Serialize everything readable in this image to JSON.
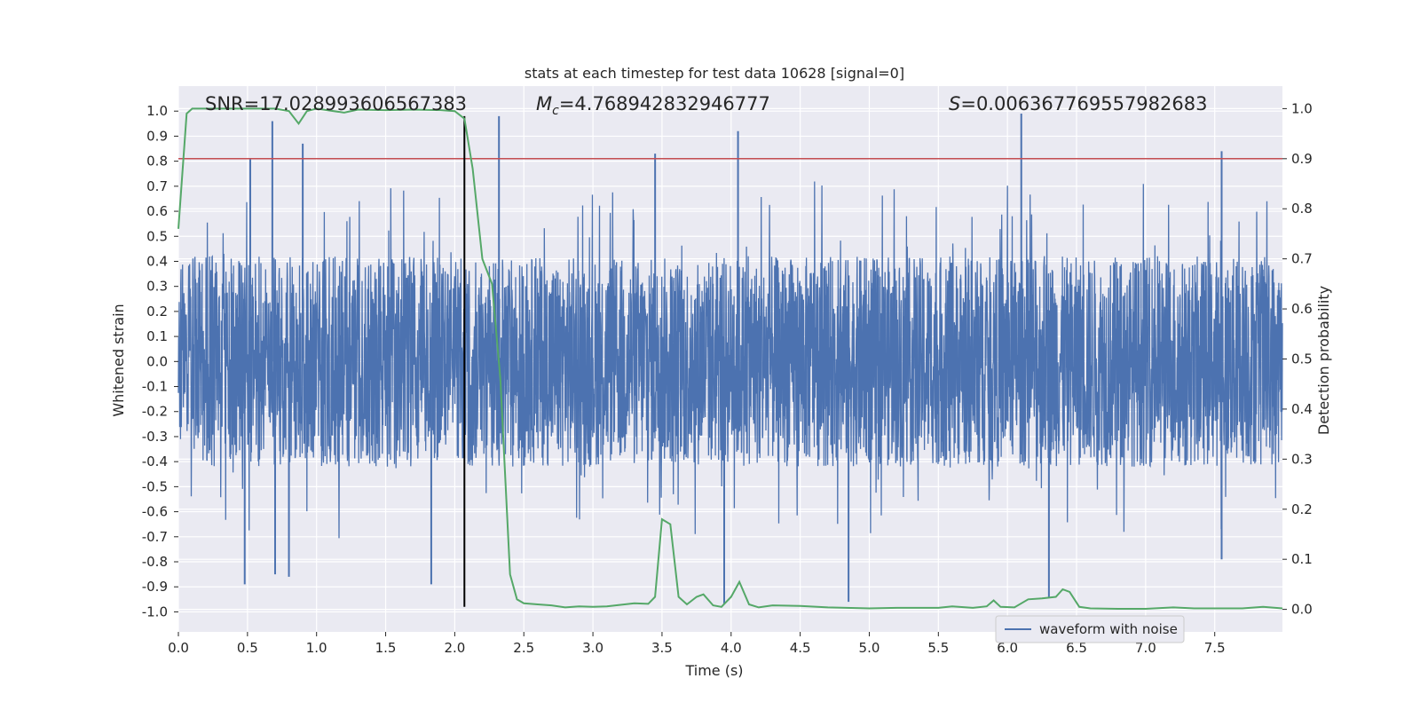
{
  "chart_data": {
    "type": "line",
    "title": "stats at each timestep for test data 10628 [signal=0]",
    "xlabel": "Time (s)",
    "ylabel_left": "Whitened strain",
    "ylabel_right": "Detection probability",
    "xlim": [
      0.0,
      7.99
    ],
    "ylim_left": [
      -1.08,
      1.1
    ],
    "ylim_right": [
      -0.045,
      1.045
    ],
    "x_ticks": [
      "0.0",
      "0.5",
      "1.0",
      "1.5",
      "2.0",
      "2.5",
      "3.0",
      "3.5",
      "4.0",
      "4.5",
      "5.0",
      "5.5",
      "6.0",
      "6.5",
      "7.0",
      "7.5"
    ],
    "x_tick_values": [
      0.0,
      0.5,
      1.0,
      1.5,
      2.0,
      2.5,
      3.0,
      3.5,
      4.0,
      4.5,
      5.0,
      5.5,
      6.0,
      6.5,
      7.0,
      7.5
    ],
    "y_ticks_left": [
      "-1.0",
      "-0.9",
      "-0.8",
      "-0.7",
      "-0.6",
      "-0.5",
      "-0.4",
      "-0.3",
      "-0.2",
      "-0.1",
      "0.0",
      "0.1",
      "0.2",
      "0.3",
      "0.4",
      "0.5",
      "0.6",
      "0.7",
      "0.8",
      "0.9",
      "1.0"
    ],
    "y_tick_values_left": [
      -1.0,
      -0.9,
      -0.8,
      -0.7,
      -0.6,
      -0.5,
      -0.4,
      -0.3,
      -0.2,
      -0.1,
      0.0,
      0.1,
      0.2,
      0.3,
      0.4,
      0.5,
      0.6,
      0.7,
      0.8,
      0.9,
      1.0
    ],
    "y_ticks_right": [
      "0.0",
      "0.1",
      "0.2",
      "0.3",
      "0.4",
      "0.5",
      "0.6",
      "0.7",
      "0.8",
      "0.9",
      "1.0"
    ],
    "y_tick_values_right": [
      0.0,
      0.1,
      0.2,
      0.3,
      0.4,
      0.5,
      0.6,
      0.7,
      0.8,
      0.9,
      1.0
    ],
    "annotations": {
      "snr": "SNR=17.028993606567383",
      "mc_symbol": "M",
      "mc_subscript": "c",
      "mc_value": "=4.768942832946777",
      "s_symbol": "S",
      "s_value": "=0.006367769557982683"
    },
    "threshold": {
      "value": 0.9,
      "axis": "right",
      "color": "#c44e52"
    },
    "marker_time": {
      "x": 2.07,
      "y_from": -0.98,
      "y_to": 0.98,
      "color": "#000000"
    },
    "legend": {
      "label": "waveform with noise",
      "position": "lower-right"
    },
    "series": [
      {
        "name": "waveform with noise",
        "axis": "left",
        "color": "#4c72b0",
        "kind": "noise-envelope",
        "x_range": [
          0.0,
          7.99
        ],
        "typical_amplitude": [
          -0.42,
          0.42
        ],
        "notable_peaks": [
          {
            "x": 0.52,
            "y": 0.81
          },
          {
            "x": 0.68,
            "y": 0.96
          },
          {
            "x": 0.9,
            "y": 0.87
          },
          {
            "x": 2.32,
            "y": 0.98
          },
          {
            "x": 3.45,
            "y": 0.83
          },
          {
            "x": 4.05,
            "y": 0.92
          },
          {
            "x": 6.1,
            "y": 0.99
          },
          {
            "x": 7.55,
            "y": 0.84
          }
        ],
        "notable_troughs": [
          {
            "x": 0.48,
            "y": -0.89
          },
          {
            "x": 0.7,
            "y": -0.85
          },
          {
            "x": 0.8,
            "y": -0.86
          },
          {
            "x": 1.83,
            "y": -0.89
          },
          {
            "x": 3.95,
            "y": -0.97
          },
          {
            "x": 4.85,
            "y": -0.96
          },
          {
            "x": 6.3,
            "y": -0.94
          },
          {
            "x": 7.55,
            "y": -0.79
          }
        ]
      },
      {
        "name": "detection probability",
        "axis": "right",
        "color": "#55a868",
        "x": [
          0.0,
          0.06,
          0.1,
          0.3,
          0.5,
          0.7,
          0.8,
          0.87,
          0.93,
          1.0,
          1.2,
          1.3,
          1.5,
          1.7,
          1.9,
          2.0,
          2.07,
          2.13,
          2.2,
          2.27,
          2.33,
          2.4,
          2.45,
          2.5,
          2.6,
          2.7,
          2.8,
          2.9,
          3.0,
          3.1,
          3.2,
          3.3,
          3.4,
          3.45,
          3.5,
          3.56,
          3.62,
          3.68,
          3.75,
          3.8,
          3.87,
          3.93,
          4.0,
          4.06,
          4.13,
          4.2,
          4.3,
          4.5,
          4.7,
          5.0,
          5.2,
          5.5,
          5.6,
          5.75,
          5.85,
          5.9,
          5.95,
          6.05,
          6.15,
          6.25,
          6.35,
          6.4,
          6.45,
          6.52,
          6.6,
          6.8,
          7.0,
          7.2,
          7.35,
          7.5,
          7.7,
          7.85,
          7.99
        ],
        "y": [
          0.76,
          0.99,
          1.0,
          1.0,
          1.0,
          1.0,
          0.995,
          0.97,
          0.995,
          1.0,
          0.992,
          0.998,
          0.997,
          0.998,
          0.997,
          0.995,
          0.98,
          0.88,
          0.7,
          0.65,
          0.46,
          0.07,
          0.02,
          0.012,
          0.01,
          0.008,
          0.004,
          0.006,
          0.005,
          0.006,
          0.009,
          0.012,
          0.011,
          0.025,
          0.18,
          0.17,
          0.025,
          0.01,
          0.025,
          0.03,
          0.008,
          0.005,
          0.025,
          0.055,
          0.01,
          0.004,
          0.008,
          0.007,
          0.004,
          0.002,
          0.003,
          0.003,
          0.006,
          0.003,
          0.006,
          0.018,
          0.005,
          0.004,
          0.02,
          0.022,
          0.025,
          0.04,
          0.035,
          0.005,
          0.002,
          0.001,
          0.001,
          0.004,
          0.002,
          0.002,
          0.002,
          0.005,
          0.002
        ]
      }
    ]
  }
}
